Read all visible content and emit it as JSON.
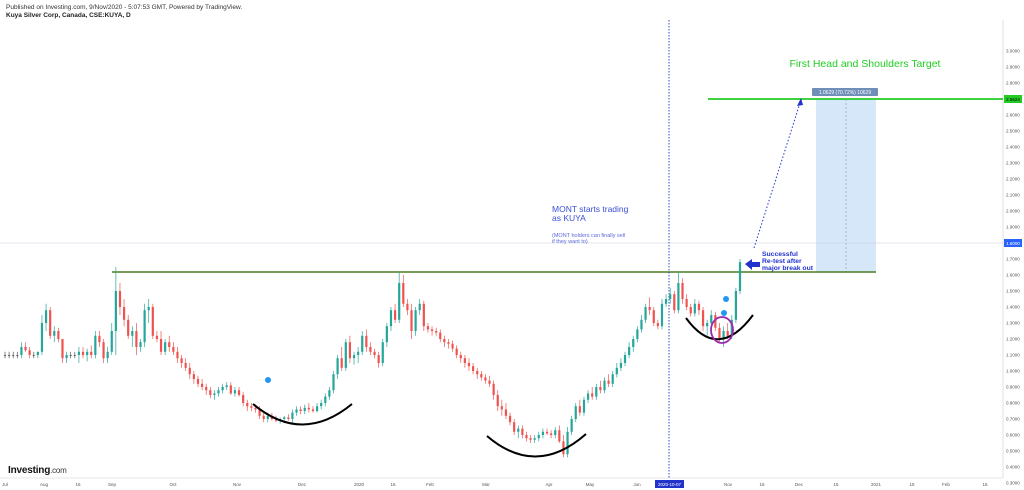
{
  "header": {
    "published": "Published on Investing.com, 9/Nov/2020 - 5:07:53 GMT, Powered by TradingView.",
    "symbol": "Kuya Silver Corp, Canada, CSE:KUYA, D"
  },
  "branding": {
    "name": "Investing",
    "suffix": ".com"
  },
  "colors": {
    "up": "#26a69a",
    "down": "#ef5350",
    "doji": "#555555",
    "resistance": "#4a7d1e",
    "target": "#22cc22",
    "vline": "#2233cc",
    "note_blue": "#3b4fd6",
    "projection_fill": "#cfe3f8",
    "curve": "#000000",
    "circle": "#9c27b0"
  },
  "annotations": {
    "target_title": "First Head and Shoulders Target",
    "mont_line1": "MONT starts trading",
    "mont_line2": "as KUYA",
    "mont_sub1": "(MONT holders can finally sell",
    "mont_sub2": "if they want to)",
    "retest_line1": "Successful",
    "retest_line2": "Re-test after",
    "retest_line3": "major break out",
    "measure_label": "1.0629 (70.72%) 10629",
    "target_price_label": "2.5624",
    "current_price_label": "1.6000",
    "date_marker": "2020-10-07"
  },
  "chart_data": {
    "type": "candlestick",
    "title": "Kuya Silver Corp, Canada, CSE:KUYA, D",
    "y_ticks": [
      "3.0000",
      "2.9000",
      "2.8000",
      "2.7000",
      "2.6000",
      "2.5000",
      "2.4000",
      "2.3000",
      "2.2000",
      "2.1000",
      "2.0000",
      "1.9000",
      "1.8000",
      "1.7000",
      "1.6000",
      "1.5000",
      "1.4000",
      "1.3000",
      "1.2000",
      "1.1000",
      "1.0000",
      "0.9000",
      "0.8000",
      "0.7000",
      "0.6000",
      "0.5000",
      "0.4000",
      "0.3000"
    ],
    "ylim": [
      0.3,
      3.0
    ],
    "x_ticks": [
      "Jul",
      "Aug",
      "16",
      "Sep",
      "Oct",
      "Nov",
      "Dec",
      "2020",
      "16",
      "Feb",
      "Mar",
      "Apr",
      "May",
      "Jun",
      "Jul",
      "Nov",
      "16",
      "Dec",
      "15",
      "2021",
      "15",
      "Feb",
      "15"
    ],
    "resistance_level": 1.5,
    "target_level": 2.5624,
    "current_price": 1.6,
    "measure": {
      "value": 1.0629,
      "percent": "70.72%"
    },
    "candles": [
      [
        1.1,
        1.12,
        1.08,
        1.1
      ],
      [
        1.1,
        1.12,
        1.08,
        1.1
      ],
      [
        1.1,
        1.12,
        1.08,
        1.1
      ],
      [
        1.1,
        1.12,
        1.08,
        1.1
      ],
      [
        1.1,
        1.18,
        1.08,
        1.15
      ],
      [
        1.15,
        1.18,
        1.12,
        1.13
      ],
      [
        1.13,
        1.15,
        1.08,
        1.1
      ],
      [
        1.1,
        1.12,
        1.08,
        1.1
      ],
      [
        1.1,
        1.12,
        1.08,
        1.12
      ],
      [
        1.12,
        1.35,
        1.1,
        1.3
      ],
      [
        1.3,
        1.42,
        1.25,
        1.38
      ],
      [
        1.38,
        1.4,
        1.2,
        1.22
      ],
      [
        1.22,
        1.28,
        1.18,
        1.25
      ],
      [
        1.25,
        1.27,
        1.18,
        1.2
      ],
      [
        1.2,
        1.2,
        1.05,
        1.08
      ],
      [
        1.08,
        1.12,
        1.05,
        1.1
      ],
      [
        1.1,
        1.12,
        1.08,
        1.1
      ],
      [
        1.1,
        1.12,
        1.08,
        1.1
      ],
      [
        1.1,
        1.15,
        1.05,
        1.12
      ],
      [
        1.12,
        1.15,
        1.08,
        1.1
      ],
      [
        1.1,
        1.14,
        1.06,
        1.12
      ],
      [
        1.12,
        1.16,
        1.08,
        1.1
      ],
      [
        1.1,
        1.25,
        1.08,
        1.22
      ],
      [
        1.22,
        1.25,
        1.15,
        1.18
      ],
      [
        1.18,
        1.2,
        1.05,
        1.08
      ],
      [
        1.08,
        1.15,
        1.05,
        1.12
      ],
      [
        1.12,
        1.3,
        1.1,
        1.25
      ],
      [
        1.25,
        1.65,
        1.1,
        1.5
      ],
      [
        1.5,
        1.55,
        1.35,
        1.4
      ],
      [
        1.4,
        1.45,
        1.28,
        1.32
      ],
      [
        1.32,
        1.35,
        1.2,
        1.22
      ],
      [
        1.22,
        1.28,
        1.15,
        1.25
      ],
      [
        1.25,
        1.3,
        1.1,
        1.15
      ],
      [
        1.15,
        1.2,
        1.12,
        1.18
      ],
      [
        1.18,
        1.42,
        1.15,
        1.38
      ],
      [
        1.38,
        1.45,
        1.3,
        1.4
      ],
      [
        1.4,
        1.42,
        1.2,
        1.22
      ],
      [
        1.22,
        1.25,
        1.18,
        1.2
      ],
      [
        1.2,
        1.25,
        1.1,
        1.12
      ],
      [
        1.12,
        1.2,
        1.1,
        1.18
      ],
      [
        1.18,
        1.22,
        1.12,
        1.15
      ],
      [
        1.15,
        1.18,
        1.1,
        1.12
      ],
      [
        1.12,
        1.15,
        1.05,
        1.08
      ],
      [
        1.08,
        1.1,
        1.02,
        1.05
      ],
      [
        1.05,
        1.08,
        1.0,
        1.02
      ],
      [
        1.02,
        1.05,
        0.95,
        0.98
      ],
      [
        0.98,
        1.0,
        0.92,
        0.95
      ],
      [
        0.95,
        0.97,
        0.9,
        0.92
      ],
      [
        0.92,
        0.95,
        0.88,
        0.9
      ],
      [
        0.9,
        0.92,
        0.85,
        0.88
      ],
      [
        0.88,
        0.9,
        0.83,
        0.85
      ],
      [
        0.85,
        0.88,
        0.82,
        0.86
      ],
      [
        0.86,
        0.9,
        0.84,
        0.88
      ],
      [
        0.88,
        0.92,
        0.86,
        0.9
      ],
      [
        0.9,
        0.93,
        0.88,
        0.91
      ],
      [
        0.91,
        0.93,
        0.85,
        0.86
      ],
      [
        0.86,
        0.9,
        0.84,
        0.88
      ],
      [
        0.88,
        0.9,
        0.84,
        0.85
      ],
      [
        0.85,
        0.87,
        0.78,
        0.8
      ],
      [
        0.8,
        0.82,
        0.75,
        0.78
      ],
      [
        0.78,
        0.8,
        0.75,
        0.77
      ],
      [
        0.77,
        0.79,
        0.74,
        0.76
      ],
      [
        0.76,
        0.78,
        0.7,
        0.72
      ],
      [
        0.72,
        0.74,
        0.68,
        0.7
      ],
      [
        0.7,
        0.74,
        0.68,
        0.72
      ],
      [
        0.72,
        0.74,
        0.69,
        0.7
      ],
      [
        0.7,
        0.72,
        0.68,
        0.69
      ],
      [
        0.69,
        0.71,
        0.67,
        0.7
      ],
      [
        0.7,
        0.72,
        0.68,
        0.71
      ],
      [
        0.71,
        0.73,
        0.69,
        0.7
      ],
      [
        0.7,
        0.76,
        0.68,
        0.74
      ],
      [
        0.74,
        0.78,
        0.72,
        0.76
      ],
      [
        0.76,
        0.78,
        0.73,
        0.75
      ],
      [
        0.75,
        0.79,
        0.73,
        0.77
      ],
      [
        0.77,
        0.8,
        0.74,
        0.76
      ],
      [
        0.76,
        0.78,
        0.74,
        0.75
      ],
      [
        0.75,
        0.8,
        0.74,
        0.78
      ],
      [
        0.78,
        0.82,
        0.76,
        0.8
      ],
      [
        0.8,
        0.86,
        0.78,
        0.84
      ],
      [
        0.84,
        0.9,
        0.82,
        0.88
      ],
      [
        0.88,
        1.0,
        0.86,
        0.98
      ],
      [
        0.98,
        1.1,
        0.95,
        1.08
      ],
      [
        1.08,
        1.15,
        1.0,
        1.02
      ],
      [
        1.02,
        1.2,
        1.0,
        1.18
      ],
      [
        1.18,
        1.22,
        1.05,
        1.08
      ],
      [
        1.08,
        1.12,
        1.04,
        1.1
      ],
      [
        1.1,
        1.15,
        1.05,
        1.12
      ],
      [
        1.12,
        1.25,
        1.1,
        1.22
      ],
      [
        1.22,
        1.26,
        1.12,
        1.15
      ],
      [
        1.15,
        1.18,
        1.1,
        1.12
      ],
      [
        1.12,
        1.14,
        1.08,
        1.1
      ],
      [
        1.1,
        1.12,
        1.02,
        1.05
      ],
      [
        1.05,
        1.2,
        1.03,
        1.18
      ],
      [
        1.18,
        1.3,
        1.15,
        1.28
      ],
      [
        1.28,
        1.4,
        1.25,
        1.38
      ],
      [
        1.38,
        1.42,
        1.3,
        1.32
      ],
      [
        1.32,
        1.62,
        1.3,
        1.55
      ],
      [
        1.55,
        1.6,
        1.4,
        1.42
      ],
      [
        1.42,
        1.45,
        1.35,
        1.38
      ],
      [
        1.38,
        1.42,
        1.2,
        1.25
      ],
      [
        1.25,
        1.4,
        1.22,
        1.38
      ],
      [
        1.38,
        1.45,
        1.35,
        1.42
      ],
      [
        1.42,
        1.44,
        1.25,
        1.28
      ],
      [
        1.28,
        1.3,
        1.24,
        1.26
      ],
      [
        1.26,
        1.28,
        1.22,
        1.25
      ],
      [
        1.25,
        1.27,
        1.22,
        1.24
      ],
      [
        1.24,
        1.26,
        1.18,
        1.2
      ],
      [
        1.2,
        1.22,
        1.15,
        1.18
      ],
      [
        1.18,
        1.2,
        1.14,
        1.17
      ],
      [
        1.17,
        1.19,
        1.12,
        1.14
      ],
      [
        1.14,
        1.16,
        1.08,
        1.1
      ],
      [
        1.1,
        1.12,
        1.05,
        1.08
      ],
      [
        1.08,
        1.1,
        1.02,
        1.05
      ],
      [
        1.05,
        1.08,
        1.0,
        1.03
      ],
      [
        1.03,
        1.05,
        0.98,
        1.0
      ],
      [
        1.0,
        1.02,
        0.95,
        0.98
      ],
      [
        0.98,
        1.0,
        0.94,
        0.96
      ],
      [
        0.96,
        0.98,
        0.92,
        0.94
      ],
      [
        0.94,
        0.97,
        0.9,
        0.92
      ],
      [
        0.92,
        0.94,
        0.82,
        0.85
      ],
      [
        0.85,
        0.88,
        0.75,
        0.78
      ],
      [
        0.78,
        0.82,
        0.72,
        0.76
      ],
      [
        0.76,
        0.8,
        0.7,
        0.72
      ],
      [
        0.72,
        0.74,
        0.66,
        0.68
      ],
      [
        0.68,
        0.7,
        0.6,
        0.62
      ],
      [
        0.62,
        0.66,
        0.58,
        0.64
      ],
      [
        0.64,
        0.66,
        0.58,
        0.6
      ],
      [
        0.6,
        0.62,
        0.56,
        0.58
      ],
      [
        0.58,
        0.6,
        0.55,
        0.57
      ],
      [
        0.57,
        0.6,
        0.55,
        0.58
      ],
      [
        0.58,
        0.62,
        0.56,
        0.6
      ],
      [
        0.6,
        0.64,
        0.58,
        0.62
      ],
      [
        0.62,
        0.64,
        0.6,
        0.61
      ],
      [
        0.61,
        0.63,
        0.58,
        0.6
      ],
      [
        0.6,
        0.65,
        0.58,
        0.63
      ],
      [
        0.63,
        0.66,
        0.55,
        0.56
      ],
      [
        0.56,
        0.6,
        0.46,
        0.48
      ],
      [
        0.48,
        0.65,
        0.46,
        0.62
      ],
      [
        0.62,
        0.72,
        0.6,
        0.7
      ],
      [
        0.7,
        0.8,
        0.68,
        0.78
      ],
      [
        0.78,
        0.82,
        0.72,
        0.74
      ],
      [
        0.74,
        0.84,
        0.72,
        0.82
      ],
      [
        0.82,
        0.88,
        0.8,
        0.86
      ],
      [
        0.86,
        0.9,
        0.82,
        0.84
      ],
      [
        0.84,
        0.92,
        0.82,
        0.9
      ],
      [
        0.9,
        0.94,
        0.86,
        0.88
      ],
      [
        0.88,
        0.96,
        0.86,
        0.94
      ],
      [
        0.94,
        0.98,
        0.9,
        0.92
      ],
      [
        0.92,
        1.0,
        0.9,
        0.98
      ],
      [
        0.98,
        1.05,
        0.96,
        1.02
      ],
      [
        1.02,
        1.08,
        1.0,
        1.05
      ],
      [
        1.05,
        1.12,
        1.03,
        1.1
      ],
      [
        1.1,
        1.18,
        1.08,
        1.15
      ],
      [
        1.15,
        1.22,
        1.12,
        1.2
      ],
      [
        1.2,
        1.28,
        1.18,
        1.26
      ],
      [
        1.26,
        1.35,
        1.24,
        1.32
      ],
      [
        1.32,
        1.42,
        1.3,
        1.4
      ],
      [
        1.4,
        1.46,
        1.35,
        1.38
      ],
      [
        1.38,
        1.4,
        1.28,
        1.3
      ],
      [
        1.3,
        1.32,
        1.26,
        1.28
      ],
      [
        1.28,
        1.45,
        1.26,
        1.42
      ],
      [
        1.42,
        1.48,
        1.4,
        1.45
      ],
      [
        1.45,
        1.52,
        1.42,
        1.48
      ],
      [
        1.48,
        1.5,
        1.36,
        1.38
      ],
      [
        1.38,
        1.62,
        1.36,
        1.55
      ],
      [
        1.55,
        1.58,
        1.42,
        1.45
      ],
      [
        1.45,
        1.48,
        1.38,
        1.4
      ],
      [
        1.4,
        1.42,
        1.34,
        1.36
      ],
      [
        1.36,
        1.45,
        1.34,
        1.42
      ],
      [
        1.42,
        1.44,
        1.35,
        1.38
      ],
      [
        1.38,
        1.4,
        1.25,
        1.28
      ],
      [
        1.28,
        1.32,
        1.22,
        1.3
      ],
      [
        1.3,
        1.38,
        1.28,
        1.35
      ],
      [
        1.35,
        1.37,
        1.25,
        1.27
      ],
      [
        1.27,
        1.3,
        1.18,
        1.2
      ],
      [
        1.2,
        1.28,
        1.15,
        1.25
      ],
      [
        1.25,
        1.3,
        1.2,
        1.22
      ],
      [
        1.22,
        1.35,
        1.2,
        1.32
      ],
      [
        1.32,
        1.52,
        1.3,
        1.5
      ],
      [
        1.5,
        1.7,
        1.48,
        1.68
      ]
    ]
  }
}
